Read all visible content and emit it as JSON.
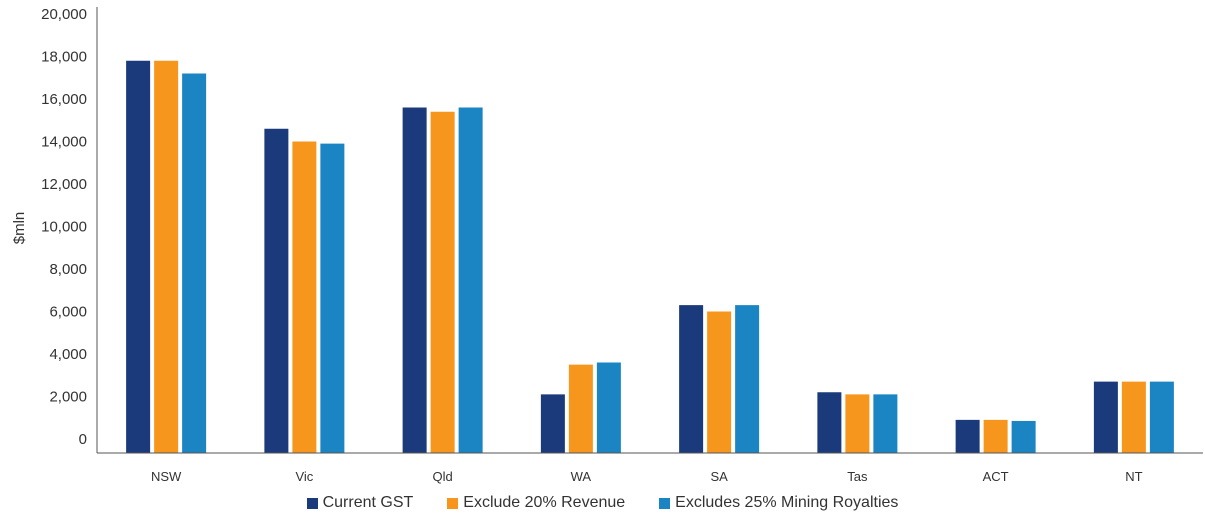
{
  "chart_data": {
    "type": "bar",
    "title": "",
    "xlabel": "",
    "ylabel": "$mln",
    "ylim": [
      0,
      20000
    ],
    "yticks": [
      0,
      2000,
      4000,
      6000,
      8000,
      10000,
      12000,
      14000,
      16000,
      18000,
      20000
    ],
    "ytick_labels": [
      "0",
      "2,000",
      "4,000",
      "6,000",
      "8,000",
      "10,000",
      "12,000",
      "14,000",
      "16,000",
      "18,000",
      "20,000"
    ],
    "grid": false,
    "legend_position": "bottom",
    "categories": [
      "NSW",
      "Vic",
      "Qld",
      "WA",
      "SA",
      "Tas",
      "ACT",
      "NT"
    ],
    "series": [
      {
        "name": "Current GST",
        "color": "#1a3a7c",
        "values": [
          17800,
          14600,
          15600,
          2100,
          6300,
          2200,
          900,
          2700
        ]
      },
      {
        "name": "Exclude 20% Revenue",
        "color": "#f7961d",
        "values": [
          17800,
          14000,
          15400,
          3500,
          6000,
          2100,
          900,
          2700
        ]
      },
      {
        "name": "Excludes 25% Mining Royalties",
        "color": "#1a85c2",
        "values": [
          17200,
          13900,
          15600,
          3600,
          6300,
          2100,
          850,
          2700
        ]
      }
    ]
  }
}
